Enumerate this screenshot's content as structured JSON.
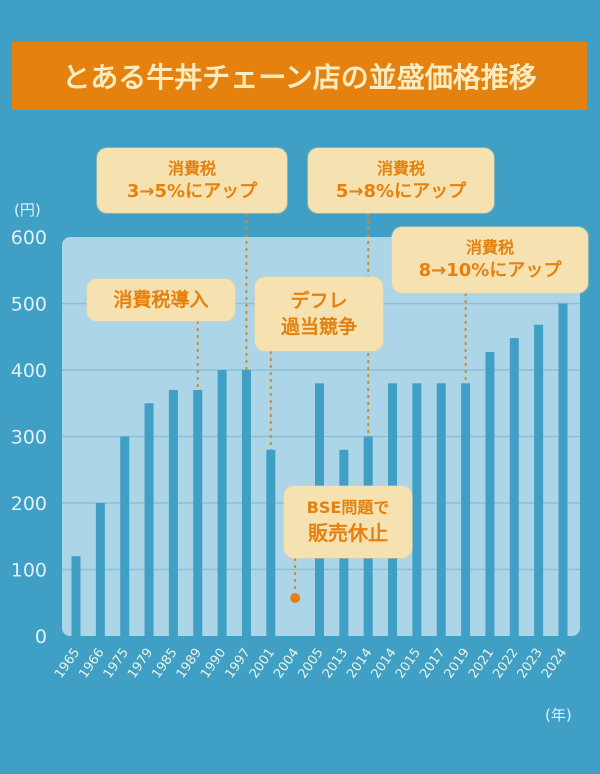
{
  "title": "とある牛丼チェーン店の並盛価格推移",
  "colors": {
    "background": "#3f9fc4",
    "panel": "#acd6e8",
    "bar": "#3f9fc4",
    "gridline": "#8cc0d6",
    "title_bg": "#e4810f",
    "title_text": "#fbecc0",
    "note_bg": "#f6e2b0",
    "note_text": "#e4810f",
    "leader": "#d48a2c",
    "axis_text": "#dff1f7"
  },
  "chart_data": {
    "type": "bar",
    "title": "とある牛丼チェーン店の並盛価格推移",
    "xlabel": "(年)",
    "ylabel": "(円)",
    "ylim": [
      0,
      600
    ],
    "yticks": [
      0,
      100,
      200,
      300,
      400,
      500,
      600
    ],
    "grid": true,
    "categories": [
      "1965",
      "1966",
      "1975",
      "1979",
      "1985",
      "1989",
      "1990",
      "1997",
      "2001",
      "2004",
      "2005",
      "2013",
      "2014",
      "2014",
      "2015",
      "2017",
      "2019",
      "2021",
      "2022",
      "2023",
      "2024"
    ],
    "values": [
      120,
      200,
      300,
      350,
      370,
      370,
      400,
      400,
      280,
      0,
      380,
      280,
      300,
      380,
      380,
      380,
      380,
      427,
      448,
      468,
      500
    ],
    "annotations": [
      {
        "name": "consumption-tax-intro",
        "lines": [
          "消費税導入"
        ],
        "category_index": 5
      },
      {
        "name": "tax-3-to-5",
        "lines": [
          "消費税",
          "3→5%にアップ"
        ],
        "category_index": 7
      },
      {
        "name": "deflation-competition",
        "lines": [
          "デフレ",
          "過当競争"
        ],
        "category_index": 8
      },
      {
        "name": "bse-suspension",
        "lines": [
          "BSE問題で",
          "販売休止"
        ],
        "category_index": 9
      },
      {
        "name": "tax-5-to-8",
        "lines": [
          "消費税",
          "5→8%にアップ"
        ],
        "category_index": 12
      },
      {
        "name": "tax-8-to-10",
        "lines": [
          "消費税",
          "8→10%にアップ"
        ],
        "category_index": 16
      }
    ]
  }
}
